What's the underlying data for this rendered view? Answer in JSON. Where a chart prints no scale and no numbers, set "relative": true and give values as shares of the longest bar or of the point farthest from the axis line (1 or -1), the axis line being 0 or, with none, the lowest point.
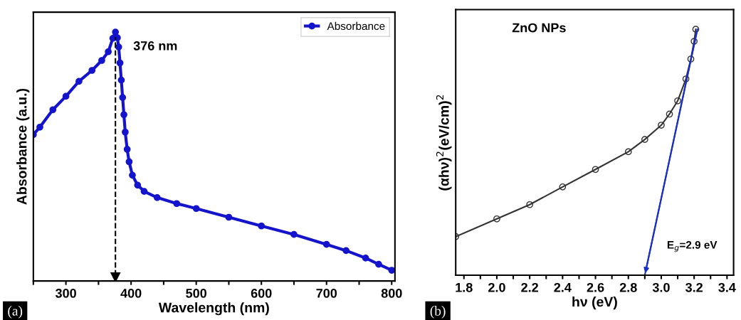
{
  "chart_data": [
    {
      "type": "line",
      "relative": true,
      "xlabel": "Wavelength (nm)",
      "ylabel": "Absorbance (a.u.)",
      "legend": "top right",
      "marker": "circle",
      "xlim": [
        250,
        805
      ],
      "xticks": [
        {
          "value": 250,
          "label": null
        },
        300,
        {
          "value": 350,
          "label": null
        },
        400,
        {
          "value": 450,
          "label": null
        },
        500,
        {
          "value": 550,
          "label": null
        },
        600,
        {
          "value": 650,
          "label": null
        },
        700,
        {
          "value": 750,
          "label": null
        },
        800
      ],
      "series": [
        {
          "name": "Absorbance",
          "color": "#1414cc",
          "x": [
            250,
            260,
            280,
            300,
            320,
            340,
            355,
            365,
            372,
            376,
            379,
            381,
            383,
            385,
            387,
            389,
            391,
            394,
            397,
            402,
            410,
            420,
            440,
            470,
            500,
            550,
            600,
            650,
            700,
            730,
            760,
            780,
            800
          ],
          "values": [
            0.588,
            0.618,
            0.688,
            0.742,
            0.802,
            0.846,
            0.886,
            0.921,
            0.975,
            1.0,
            0.977,
            0.94,
            0.876,
            0.807,
            0.737,
            0.668,
            0.598,
            0.529,
            0.479,
            0.425,
            0.385,
            0.36,
            0.335,
            0.311,
            0.291,
            0.256,
            0.221,
            0.187,
            0.147,
            0.122,
            0.092,
            0.067,
            0.043
          ]
        }
      ],
      "ref_lines": [
        {
          "axis": "x",
          "value": 376,
          "color": "#000000",
          "line_style": "dashed"
        }
      ],
      "annotations": [
        {
          "text": "376 nm",
          "x": 376,
          "y": 1.0
        },
        "(a)"
      ]
    },
    {
      "type": "line",
      "relative": true,
      "title": "ZnO NPs",
      "xlabel": "hν (eV)",
      "ylabel": "(αhν)$^{2}$(eV/cm)$^{2}$",
      "marker": "circle",
      "xlim": [
        1.75,
        3.44
      ],
      "xticks": [
        1.8,
        {
          "value": 1.9,
          "label": null
        },
        {
          "value": 2.0,
          "label": "2.0"
        },
        {
          "value": 2.1,
          "label": null
        },
        2.2,
        {
          "value": 2.3,
          "label": null
        },
        2.4,
        {
          "value": 2.5,
          "label": null
        },
        2.6,
        {
          "value": 2.7,
          "label": null
        },
        2.8,
        {
          "value": 2.9,
          "label": null
        },
        {
          "value": 3.0,
          "label": "3.0"
        },
        {
          "value": 3.1,
          "label": null
        },
        3.2,
        {
          "value": 3.3,
          "label": null
        },
        3.4
      ],
      "series": [
        {
          "color": "#333333",
          "x": [
            1.75,
            2.0,
            2.2,
            2.4,
            2.6,
            2.8,
            2.9,
            3.0,
            3.05,
            3.1,
            3.15,
            3.18,
            3.2,
            3.21
          ],
          "values": [
            0.157,
            0.229,
            0.287,
            0.359,
            0.43,
            0.502,
            0.552,
            0.61,
            0.655,
            0.709,
            0.798,
            0.879,
            0.951,
            1.0
          ]
        },
        {
          "type": "line",
          "marker": "none",
          "color": "#1a2fc8",
          "x": [
            3.22,
            2.9
          ],
          "values": [
            1.0,
            0.0
          ]
        }
      ],
      "annotations": [
        "E$_{g}$=2.9 eV",
        "(b)"
      ]
    }
  ]
}
